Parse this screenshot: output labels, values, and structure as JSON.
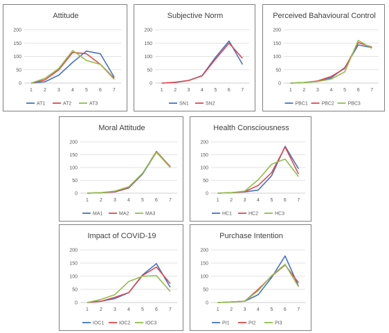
{
  "colors": {
    "s1": "#4472c4",
    "s2": "#e0474c",
    "s3": "#8fbe4a",
    "grid": "#d9d9d9",
    "axis": "#bfbfbf"
  },
  "chart_data": [
    {
      "type": "line",
      "title": "Attitude",
      "x": [
        1,
        2,
        3,
        4,
        5,
        6,
        7
      ],
      "ylim": [
        0,
        200
      ],
      "yticks": [
        0,
        50,
        100,
        150,
        200
      ],
      "grid": true,
      "legend": "bottom",
      "series": [
        {
          "name": "AT1",
          "values": [
            0,
            5,
            30,
            78,
            120,
            110,
            22
          ]
        },
        {
          "name": "AT2",
          "values": [
            0,
            12,
            50,
            115,
            110,
            70,
            18
          ]
        },
        {
          "name": "AT3",
          "values": [
            0,
            18,
            55,
            122,
            85,
            70,
            14
          ]
        }
      ]
    },
    {
      "type": "line",
      "title": "Subjective Norm",
      "x": [
        1,
        2,
        3,
        4,
        5,
        6,
        7
      ],
      "ylim": [
        0,
        200
      ],
      "yticks": [
        0,
        50,
        100,
        150,
        200
      ],
      "grid": true,
      "legend": "bottom",
      "series": [
        {
          "name": "SN1",
          "values": [
            0,
            2,
            10,
            28,
            97,
            158,
            70
          ]
        },
        {
          "name": "SN2",
          "values": [
            0,
            3,
            10,
            27,
            90,
            150,
            93
          ]
        }
      ]
    },
    {
      "type": "line",
      "title": "Perceived Bahavioural Control",
      "x": [
        1,
        2,
        3,
        4,
        5,
        6,
        7
      ],
      "ylim": [
        0,
        200
      ],
      "yticks": [
        0,
        50,
        100,
        150,
        200
      ],
      "grid": true,
      "legend": "bottom",
      "series": [
        {
          "name": "PBC1",
          "values": [
            0,
            2,
            6,
            20,
            58,
            143,
            133
          ]
        },
        {
          "name": "PBC2",
          "values": [
            0,
            2,
            8,
            25,
            55,
            152,
            135
          ]
        },
        {
          "name": "PBC3",
          "values": [
            0,
            2,
            6,
            15,
            42,
            160,
            130
          ]
        }
      ]
    },
    {
      "type": "line",
      "title": "Moral Attitude",
      "x": [
        1,
        2,
        3,
        4,
        5,
        6,
        7
      ],
      "ylim": [
        0,
        200
      ],
      "yticks": [
        0,
        50,
        100,
        150,
        200
      ],
      "grid": true,
      "legend": "bottom",
      "series": [
        {
          "name": "MA1",
          "values": [
            0,
            2,
            5,
            20,
            75,
            160,
            103
          ]
        },
        {
          "name": "MA2",
          "values": [
            0,
            2,
            6,
            22,
            77,
            163,
            103
          ]
        },
        {
          "name": "MA3",
          "values": [
            0,
            2,
            8,
            25,
            78,
            160,
            100
          ]
        }
      ]
    },
    {
      "type": "line",
      "title": "Health Consciousness",
      "x": [
        1,
        2,
        3,
        4,
        5,
        6,
        7
      ],
      "ylim": [
        0,
        200
      ],
      "yticks": [
        0,
        50,
        100,
        150,
        200
      ],
      "grid": true,
      "legend": "bottom",
      "series": [
        {
          "name": "HC1",
          "values": [
            0,
            2,
            5,
            12,
            68,
            183,
            95
          ]
        },
        {
          "name": "HC2",
          "values": [
            0,
            2,
            6,
            30,
            80,
            180,
            75
          ]
        },
        {
          "name": "HC3",
          "values": [
            0,
            2,
            8,
            52,
            113,
            133,
            65
          ]
        }
      ]
    },
    {
      "type": "line",
      "title": "Impact of COVID-19",
      "x": [
        1,
        2,
        3,
        4,
        5,
        6,
        7
      ],
      "ylim": [
        0,
        200
      ],
      "yticks": [
        0,
        50,
        100,
        150,
        200
      ],
      "grid": true,
      "legend": "bottom",
      "series": [
        {
          "name": "IOC1",
          "values": [
            0,
            5,
            15,
            38,
            105,
            148,
            58
          ]
        },
        {
          "name": "IOC2",
          "values": [
            0,
            5,
            20,
            38,
            103,
            135,
            72
          ]
        },
        {
          "name": "IOC3",
          "values": [
            0,
            12,
            30,
            80,
            100,
            102,
            42
          ]
        }
      ]
    },
    {
      "type": "line",
      "title": "Purchase Intention",
      "x": [
        1,
        2,
        3,
        4,
        5,
        6,
        7
      ],
      "ylim": [
        0,
        200
      ],
      "yticks": [
        0,
        50,
        100,
        150,
        200
      ],
      "grid": true,
      "legend": "bottom",
      "series": [
        {
          "name": "PI1",
          "values": [
            0,
            2,
            5,
            30,
            95,
            177,
            62
          ]
        },
        {
          "name": "PI2",
          "values": [
            0,
            2,
            5,
            50,
            100,
            143,
            75
          ]
        },
        {
          "name": "PI3",
          "values": [
            0,
            2,
            5,
            45,
            102,
            145,
            60
          ]
        }
      ]
    }
  ]
}
